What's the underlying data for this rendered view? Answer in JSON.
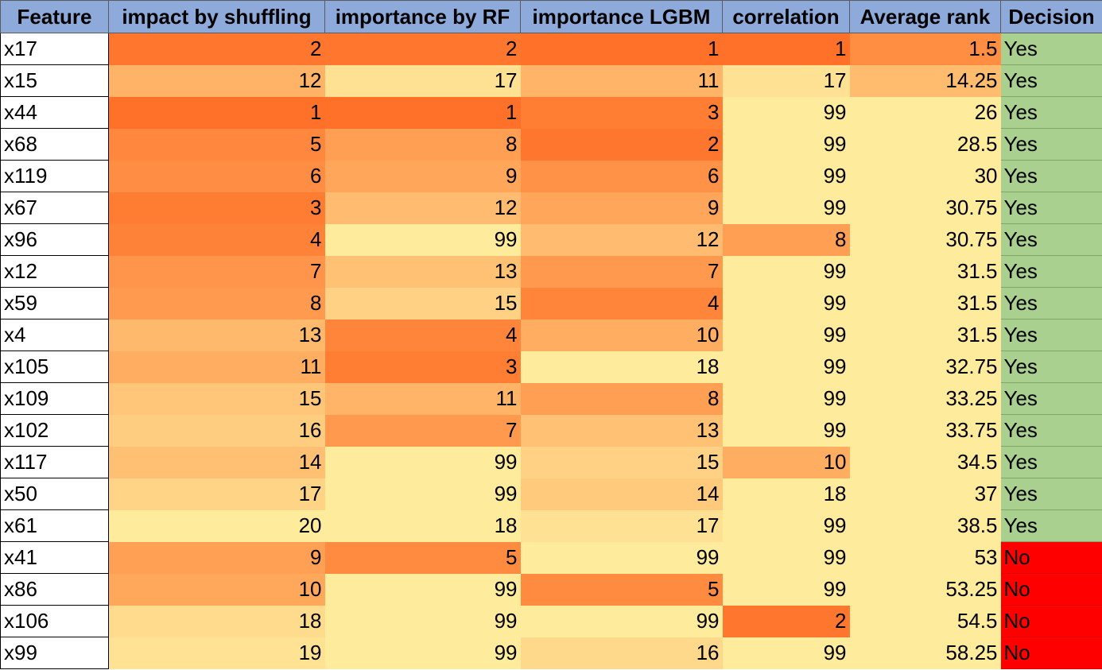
{
  "sheet": {
    "headers": [
      "Feature",
      "impact by shuffling",
      "importance by RF",
      "importance LGBM",
      "correlation",
      "Average rank",
      "Decision"
    ],
    "colors": {
      "header_bg": "#8eaadb",
      "decision_yes": "#a9d08e",
      "decision_no": "#ff0000",
      "heat_low": "#ffeb9c",
      "heat_high": "#ff7128"
    },
    "rows": [
      {
        "feature": "x17",
        "shuffle": "2",
        "rf": "2",
        "lgbm": "1",
        "corr": "1",
        "avg": "1.5",
        "decision": "Yes"
      },
      {
        "feature": "x15",
        "shuffle": "12",
        "rf": "17",
        "lgbm": "11",
        "corr": "17",
        "avg": "14.25",
        "decision": "Yes"
      },
      {
        "feature": "x44",
        "shuffle": "1",
        "rf": "1",
        "lgbm": "3",
        "corr": "99",
        "avg": "26",
        "decision": "Yes"
      },
      {
        "feature": "x68",
        "shuffle": "5",
        "rf": "8",
        "lgbm": "2",
        "corr": "99",
        "avg": "28.5",
        "decision": "Yes"
      },
      {
        "feature": "x119",
        "shuffle": "6",
        "rf": "9",
        "lgbm": "6",
        "corr": "99",
        "avg": "30",
        "decision": "Yes"
      },
      {
        "feature": "x67",
        "shuffle": "3",
        "rf": "12",
        "lgbm": "9",
        "corr": "99",
        "avg": "30.75",
        "decision": "Yes"
      },
      {
        "feature": "x96",
        "shuffle": "4",
        "rf": "99",
        "lgbm": "12",
        "corr": "8",
        "avg": "30.75",
        "decision": "Yes"
      },
      {
        "feature": "x12",
        "shuffle": "7",
        "rf": "13",
        "lgbm": "7",
        "corr": "99",
        "avg": "31.5",
        "decision": "Yes"
      },
      {
        "feature": "x59",
        "shuffle": "8",
        "rf": "15",
        "lgbm": "4",
        "corr": "99",
        "avg": "31.5",
        "decision": "Yes"
      },
      {
        "feature": "x4",
        "shuffle": "13",
        "rf": "4",
        "lgbm": "10",
        "corr": "99",
        "avg": "31.5",
        "decision": "Yes"
      },
      {
        "feature": "x105",
        "shuffle": "11",
        "rf": "3",
        "lgbm": "18",
        "corr": "99",
        "avg": "32.75",
        "decision": "Yes"
      },
      {
        "feature": "x109",
        "shuffle": "15",
        "rf": "11",
        "lgbm": "8",
        "corr": "99",
        "avg": "33.25",
        "decision": "Yes"
      },
      {
        "feature": "x102",
        "shuffle": "16",
        "rf": "7",
        "lgbm": "13",
        "corr": "99",
        "avg": "33.75",
        "decision": "Yes"
      },
      {
        "feature": "x117",
        "shuffle": "14",
        "rf": "99",
        "lgbm": "15",
        "corr": "10",
        "avg": "34.5",
        "decision": "Yes"
      },
      {
        "feature": "x50",
        "shuffle": "17",
        "rf": "99",
        "lgbm": "14",
        "corr": "18",
        "avg": "37",
        "decision": "Yes"
      },
      {
        "feature": "x61",
        "shuffle": "20",
        "rf": "18",
        "lgbm": "17",
        "corr": "99",
        "avg": "38.5",
        "decision": "Yes"
      },
      {
        "feature": "x41",
        "shuffle": "9",
        "rf": "5",
        "lgbm": "99",
        "corr": "99",
        "avg": "53",
        "decision": "No"
      },
      {
        "feature": "x86",
        "shuffle": "10",
        "rf": "99",
        "lgbm": "5",
        "corr": "99",
        "avg": "53.25",
        "decision": "No"
      },
      {
        "feature": "x106",
        "shuffle": "18",
        "rf": "99",
        "lgbm": "99",
        "corr": "2",
        "avg": "54.5",
        "decision": "No"
      },
      {
        "feature": "x99",
        "shuffle": "19",
        "rf": "99",
        "lgbm": "16",
        "corr": "99",
        "avg": "58.25",
        "decision": "No"
      }
    ]
  }
}
